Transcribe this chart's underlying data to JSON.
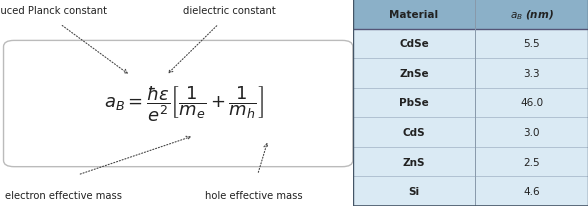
{
  "label_reduced_planck": "reduced Planck constant",
  "label_dielectric": "dielectric constant",
  "label_electron": "electron effective mass",
  "label_hole": "hole effective mass",
  "table_header_col0": "Material",
  "table_header_col1": "$a_B$ (nm)",
  "table_data": [
    [
      "CdSe",
      "5.5"
    ],
    [
      "ZnSe",
      "3.3"
    ],
    [
      "PbSe",
      "46.0"
    ],
    [
      "CdS",
      "3.0"
    ],
    [
      "ZnS",
      "2.5"
    ],
    [
      "Si",
      "4.6"
    ]
  ],
  "table_header_bg": "#8bb0c8",
  "table_row_bg": "#daeaf4",
  "box_bg": "#ffffff",
  "box_edge": "#bbbbbb",
  "text_color": "#222222",
  "arrow_color": "#444444",
  "fig_bg": "#ffffff",
  "label_fontsize": 7.2,
  "formula_fontsize": 13,
  "table_fontsize": 7.5
}
